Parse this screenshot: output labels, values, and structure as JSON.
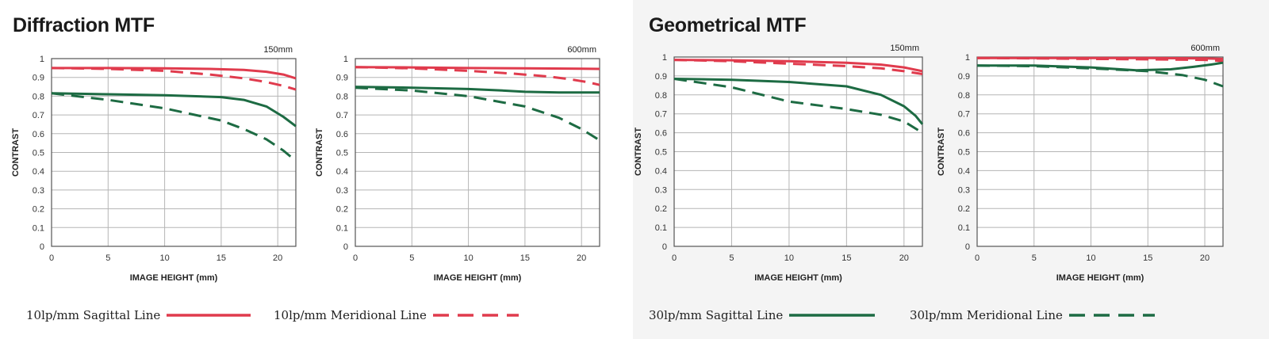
{
  "sections": [
    {
      "title": "Diffraction MTF"
    },
    {
      "title": "Geometrical MTF"
    }
  ],
  "colors": {
    "red": "#e03b4d",
    "green": "#1d6b43",
    "grid": "#b5b5b5",
    "axis": "#333333"
  },
  "legend": [
    {
      "label": "10lp/mm Sagittal Line",
      "color": "#e03b4d",
      "style": "solid"
    },
    {
      "label": "10lp/mm Meridional Line",
      "color": "#e03b4d",
      "style": "dashed"
    },
    {
      "label": "30lp/mm Sagittal Line",
      "color": "#1d6b43",
      "style": "solid"
    },
    {
      "label": "30lp/mm Meridional Line",
      "color": "#1d6b43",
      "style": "dashed"
    }
  ],
  "chart_data": [
    {
      "type": "line",
      "section": "Diffraction MTF",
      "focal_label": "150mm",
      "xlabel": "IMAGE HEIGHT (mm)",
      "ylabel": "CONTRAST",
      "xlim": [
        0,
        21.6
      ],
      "ylim": [
        0,
        1
      ],
      "xticks": [
        "0",
        "5",
        "10",
        "15",
        "20"
      ],
      "yticks": [
        "0",
        "0.1",
        "0.2",
        "0.3",
        "0.4",
        "0.5",
        "0.6",
        "0.7",
        "0.8",
        "0.9",
        "1"
      ],
      "grid": true,
      "series": [
        {
          "color": "red",
          "style": "solid",
          "x": [
            0,
            5,
            10,
            14,
            17,
            19,
            20.5,
            21.6
          ],
          "y": [
            0.95,
            0.95,
            0.948,
            0.945,
            0.94,
            0.93,
            0.915,
            0.895
          ]
        },
        {
          "color": "red",
          "style": "dashed",
          "x": [
            0,
            5,
            10,
            14,
            17,
            19,
            20.5,
            21.6
          ],
          "y": [
            0.95,
            0.945,
            0.935,
            0.915,
            0.895,
            0.875,
            0.855,
            0.835
          ]
        },
        {
          "color": "green",
          "style": "solid",
          "x": [
            0,
            5,
            10,
            15,
            17,
            19,
            20.5,
            21.6
          ],
          "y": [
            0.815,
            0.81,
            0.805,
            0.795,
            0.78,
            0.745,
            0.69,
            0.64
          ]
        },
        {
          "color": "green",
          "style": "dashed",
          "x": [
            0,
            5,
            10,
            15,
            17,
            19,
            20.5,
            21.6
          ],
          "y": [
            0.815,
            0.78,
            0.735,
            0.67,
            0.625,
            0.57,
            0.51,
            0.455
          ]
        }
      ]
    },
    {
      "type": "line",
      "section": "Diffraction MTF",
      "focal_label": "600mm",
      "xlabel": "IMAGE HEIGHT (mm)",
      "ylabel": "CONTRAST",
      "xlim": [
        0,
        21.6
      ],
      "ylim": [
        0,
        1
      ],
      "xticks": [
        "0",
        "5",
        "10",
        "15",
        "20"
      ],
      "yticks": [
        "0",
        "0.1",
        "0.2",
        "0.3",
        "0.4",
        "0.5",
        "0.6",
        "0.7",
        "0.8",
        "0.9",
        "1"
      ],
      "grid": true,
      "series": [
        {
          "color": "red",
          "style": "solid",
          "x": [
            0,
            5,
            10,
            15,
            20,
            21.6
          ],
          "y": [
            0.955,
            0.953,
            0.95,
            0.948,
            0.946,
            0.945
          ]
        },
        {
          "color": "red",
          "style": "dashed",
          "x": [
            0,
            5,
            10,
            14,
            17,
            19,
            20.5,
            21.6
          ],
          "y": [
            0.955,
            0.948,
            0.935,
            0.92,
            0.905,
            0.89,
            0.875,
            0.86
          ]
        },
        {
          "color": "green",
          "style": "solid",
          "x": [
            0,
            5,
            10,
            13,
            15,
            18,
            21.6
          ],
          "y": [
            0.85,
            0.845,
            0.838,
            0.83,
            0.823,
            0.82,
            0.82
          ]
        },
        {
          "color": "green",
          "style": "dashed",
          "x": [
            0,
            5,
            10,
            15,
            18,
            20,
            21.6
          ],
          "y": [
            0.845,
            0.83,
            0.8,
            0.745,
            0.685,
            0.625,
            0.565
          ]
        }
      ]
    },
    {
      "type": "line",
      "section": "Geometrical MTF",
      "focal_label": "150mm",
      "xlabel": "IMAGE HEIGHT (mm)",
      "ylabel": "CONTRAST",
      "xlim": [
        0,
        21.6
      ],
      "ylim": [
        0,
        1
      ],
      "xticks": [
        "0",
        "5",
        "10",
        "15",
        "20"
      ],
      "yticks": [
        "0",
        "0.1",
        "0.2",
        "0.3",
        "0.4",
        "0.5",
        "0.6",
        "0.7",
        "0.8",
        "0.9",
        "1"
      ],
      "grid": true,
      "series": [
        {
          "color": "red",
          "style": "solid",
          "x": [
            0,
            5,
            10,
            15,
            18,
            20,
            21.6
          ],
          "y": [
            0.985,
            0.983,
            0.978,
            0.97,
            0.96,
            0.945,
            0.925
          ]
        },
        {
          "color": "red",
          "style": "dashed",
          "x": [
            0,
            5,
            10,
            15,
            18,
            20,
            21.6
          ],
          "y": [
            0.985,
            0.978,
            0.965,
            0.952,
            0.94,
            0.925,
            0.91
          ]
        },
        {
          "color": "green",
          "style": "solid",
          "x": [
            0,
            5,
            10,
            15,
            18,
            20,
            21,
            21.6
          ],
          "y": [
            0.885,
            0.88,
            0.868,
            0.845,
            0.8,
            0.74,
            0.69,
            0.645
          ]
        },
        {
          "color": "green",
          "style": "dashed",
          "x": [
            0,
            5,
            10,
            15,
            18,
            20,
            21.6
          ],
          "y": [
            0.885,
            0.84,
            0.765,
            0.725,
            0.695,
            0.66,
            0.6
          ]
        }
      ]
    },
    {
      "type": "line",
      "section": "Geometrical MTF",
      "focal_label": "600mm",
      "xlabel": "IMAGE HEIGHT (mm)",
      "ylabel": "CONTRAST",
      "xlim": [
        0,
        21.6
      ],
      "ylim": [
        0,
        1
      ],
      "xticks": [
        "0",
        "5",
        "10",
        "15",
        "20"
      ],
      "yticks": [
        "0",
        "0.1",
        "0.2",
        "0.3",
        "0.4",
        "0.5",
        "0.6",
        "0.7",
        "0.8",
        "0.9",
        "1"
      ],
      "grid": true,
      "series": [
        {
          "color": "red",
          "style": "solid",
          "x": [
            0,
            5,
            10,
            15,
            20,
            21.6
          ],
          "y": [
            0.995,
            0.995,
            0.995,
            0.995,
            0.993,
            0.99
          ]
        },
        {
          "color": "red",
          "style": "dashed",
          "x": [
            0,
            5,
            10,
            15,
            20,
            21.6
          ],
          "y": [
            0.995,
            0.993,
            0.99,
            0.988,
            0.985,
            0.978
          ]
        },
        {
          "color": "green",
          "style": "solid",
          "x": [
            0,
            5,
            10,
            14,
            17,
            19,
            20.5,
            21.6
          ],
          "y": [
            0.955,
            0.955,
            0.945,
            0.93,
            0.935,
            0.948,
            0.96,
            0.97
          ]
        },
        {
          "color": "green",
          "style": "dashed",
          "x": [
            0,
            5,
            10,
            15,
            18,
            20,
            21.6
          ],
          "y": [
            0.955,
            0.952,
            0.94,
            0.925,
            0.905,
            0.88,
            0.845
          ]
        }
      ]
    }
  ]
}
